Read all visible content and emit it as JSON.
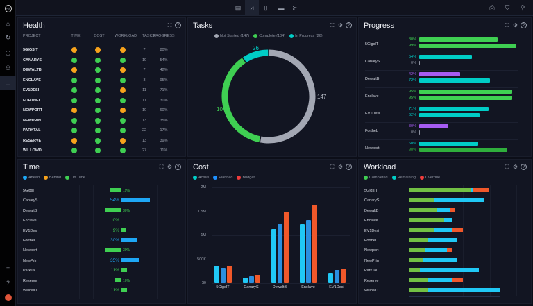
{
  "colors": {
    "green": "#3fcf52",
    "orange": "#f7a21b",
    "teal": "#00cdc6",
    "purple": "#a65cf2",
    "blue": "#1ea7f5",
    "gray": "#a3a7b3",
    "red": "#f04a2a",
    "lime": "#72c044",
    "cyan": "#20c8f5"
  },
  "sidebar": {
    "logo": "PM",
    "items": [
      "home-icon",
      "notification-icon",
      "clock-icon",
      "team-icon",
      "briefcase-icon"
    ],
    "bottom": [
      "plus-icon",
      "help-icon",
      "avatar"
    ]
  },
  "topbar": {
    "views": [
      "board-icon",
      "dashboard-icon",
      "clipboard-icon",
      "toggle-icon",
      "flow-icon"
    ],
    "right": [
      "print-icon",
      "filter-icon",
      "search-icon"
    ]
  },
  "health": {
    "title": "Health",
    "columns": [
      "PROJECT",
      "TIME",
      "COST",
      "WORKLOAD",
      "TASKS",
      "PROGRESS"
    ],
    "rows": [
      {
        "project": "5GIGSIT",
        "time": "orange",
        "cost": "orange",
        "workload": "orange",
        "tasks": "7",
        "progress": "80%"
      },
      {
        "project": "CANARYS",
        "time": "green",
        "cost": "green",
        "workload": "green",
        "tasks": "19",
        "progress": "54%"
      },
      {
        "project": "DEWALTB",
        "time": "orange",
        "cost": "green",
        "workload": "orange",
        "tasks": "7",
        "progress": "42%"
      },
      {
        "project": "ENCLAVE",
        "time": "green",
        "cost": "green",
        "workload": "green",
        "tasks": "3",
        "progress": "95%"
      },
      {
        "project": "EV1DESI",
        "time": "green",
        "cost": "green",
        "workload": "orange",
        "tasks": "11",
        "progress": "71%"
      },
      {
        "project": "FORTHEL",
        "time": "green",
        "cost": "green",
        "workload": "green",
        "tasks": "11",
        "progress": "30%"
      },
      {
        "project": "NEWPORT",
        "time": "orange",
        "cost": "green",
        "workload": "orange",
        "tasks": "10",
        "progress": "60%"
      },
      {
        "project": "NEWPRIN",
        "time": "green",
        "cost": "green",
        "workload": "green",
        "tasks": "13",
        "progress": "35%"
      },
      {
        "project": "PARKTAL",
        "time": "green",
        "cost": "green",
        "workload": "green",
        "tasks": "22",
        "progress": "17%"
      },
      {
        "project": "RESERVE",
        "time": "orange",
        "cost": "green",
        "workload": "orange",
        "tasks": "13",
        "progress": "39%"
      },
      {
        "project": "WILLOWD",
        "time": "green",
        "cost": "green",
        "workload": "green",
        "tasks": "27",
        "progress": "11%"
      }
    ]
  },
  "tasks": {
    "title": "Tasks",
    "legend": [
      "Not Started (147)",
      "Complete (104)",
      "In Progress (26)"
    ]
  },
  "progress": {
    "title": "Progress"
  },
  "time": {
    "title": "Time"
  },
  "cost": {
    "title": "Cost"
  },
  "workload": {
    "title": "Workload"
  },
  "chart_data": [
    {
      "id": "tasks",
      "type": "pie",
      "donut": true,
      "series": [
        {
          "name": "Not Started",
          "value": 147,
          "label": "147",
          "color": "#a3a7b3"
        },
        {
          "name": "Complete",
          "value": 104,
          "label": "104",
          "color": "#3fcf52"
        },
        {
          "name": "In Progress",
          "value": 26,
          "label": "26",
          "color": "#00cdc6"
        }
      ]
    },
    {
      "id": "progress",
      "type": "bar",
      "orientation": "horizontal",
      "xlim": [
        0,
        100
      ],
      "categories": [
        "5GigsIT",
        "CanaryS",
        "DewaltB",
        "Enclave",
        "EV1Desi",
        "FortheL",
        "Newport"
      ],
      "bars": [
        [
          {
            "v": 80,
            "label": "80%",
            "color": "#3fcf52"
          },
          {
            "v": 99,
            "label": "99%",
            "color": "#3fcf52"
          }
        ],
        [
          {
            "v": 54,
            "label": "54%",
            "color": "#00cdc6"
          },
          {
            "v": 0,
            "label": "0%",
            "color": "#8d92a0"
          }
        ],
        [
          {
            "v": 42,
            "label": "42%",
            "color": "#a65cf2"
          },
          {
            "v": 72,
            "label": "72%",
            "color": "#00cdc6"
          }
        ],
        [
          {
            "v": 95,
            "label": "95%",
            "color": "#3fcf52"
          },
          {
            "v": 95,
            "label": "95%",
            "color": "#3fcf52"
          }
        ],
        [
          {
            "v": 71,
            "label": "71%",
            "color": "#00cdc6"
          },
          {
            "v": 62,
            "label": "62%",
            "color": "#00cdc6"
          }
        ],
        [
          {
            "v": 30,
            "label": "30%",
            "color": "#a65cf2"
          },
          {
            "v": 0,
            "label": "0%",
            "color": "#8d92a0"
          }
        ],
        [
          {
            "v": 60,
            "label": "60%",
            "color": "#00cdc6"
          },
          {
            "v": 90,
            "label": "90%",
            "color": "#2fae3c"
          }
        ]
      ]
    },
    {
      "id": "time",
      "type": "bar",
      "orientation": "horizontal",
      "legend": [
        "Ahead",
        "Behind",
        "On Time"
      ],
      "legend_colors": [
        "#1ea7f5",
        "#f7a21b",
        "#3fcf52"
      ],
      "categories": [
        "5GigsIT",
        "CanaryS",
        "DewaltB",
        "Enclave",
        "EV1Desi",
        "FortheL",
        "Newport",
        "NewPrin",
        "ParkTal",
        "Reserve",
        "WillowD"
      ],
      "values": [
        -19,
        54,
        -30,
        0,
        9,
        30,
        -30,
        35,
        11,
        -10,
        11
      ],
      "labels": [
        "19%",
        "54%",
        "30%",
        "0%",
        "9%",
        "30%",
        "30%",
        "35%",
        "11%",
        "10%",
        "11%"
      ],
      "status": [
        "On Time",
        "Ahead",
        "On Time",
        "On Time",
        "On Time",
        "Ahead",
        "On Time",
        "Ahead",
        "On Time",
        "On Time",
        "On Time"
      ]
    },
    {
      "id": "cost",
      "type": "bar",
      "legend": [
        "Actual",
        "Planned",
        "Budget"
      ],
      "legend_colors": [
        "#00cdc6",
        "#1e90ff",
        "#f03c3c"
      ],
      "bar_colors": [
        "#20c8f5",
        "#2a8fe0",
        "#f0582a"
      ],
      "categories": [
        "5GigsIT",
        "CanaryS",
        "DewaltB",
        "Enclave",
        "EV1Desi"
      ],
      "series": [
        {
          "name": "Actual",
          "values": [
            360000,
            120000,
            1130000,
            1230000,
            210000
          ]
        },
        {
          "name": "Planned",
          "values": [
            320000,
            145000,
            1230000,
            1320000,
            270000
          ]
        },
        {
          "name": "Budget",
          "values": [
            360000,
            170000,
            1500000,
            1640000,
            300000
          ]
        }
      ],
      "ylim": [
        0,
        2000000
      ],
      "yticks": [
        "$0",
        "500K",
        "1M",
        "1.5M",
        "2M"
      ],
      "grid": true
    },
    {
      "id": "workload",
      "type": "bar",
      "stacked": true,
      "orientation": "horizontal",
      "legend": [
        "Completed",
        "Remaining",
        "Overdue"
      ],
      "legend_colors": [
        "#3fcf52",
        "#00cdc6",
        "#f03c3c"
      ],
      "bar_colors": [
        "#72c044",
        "#20c8f5",
        "#f0582a"
      ],
      "categories": [
        "5GigsIT",
        "CanaryS",
        "DewaltB",
        "Enclave",
        "EV1Desi",
        "FortheL",
        "Newport",
        "NewPrin",
        "ParkTal",
        "Reserve",
        "WillowD"
      ],
      "series": [
        {
          "name": "Completed",
          "values": [
            23,
            9,
            10,
            13,
            9,
            7,
            6,
            5,
            4,
            7,
            7
          ]
        },
        {
          "name": "Remaining",
          "values": [
            1,
            19,
            5,
            3,
            7,
            11,
            8,
            13,
            22,
            9,
            27
          ]
        },
        {
          "name": "Overdue",
          "values": [
            6,
            0,
            2,
            0,
            4,
            0,
            2,
            0,
            0,
            4,
            0
          ]
        }
      ]
    }
  ]
}
